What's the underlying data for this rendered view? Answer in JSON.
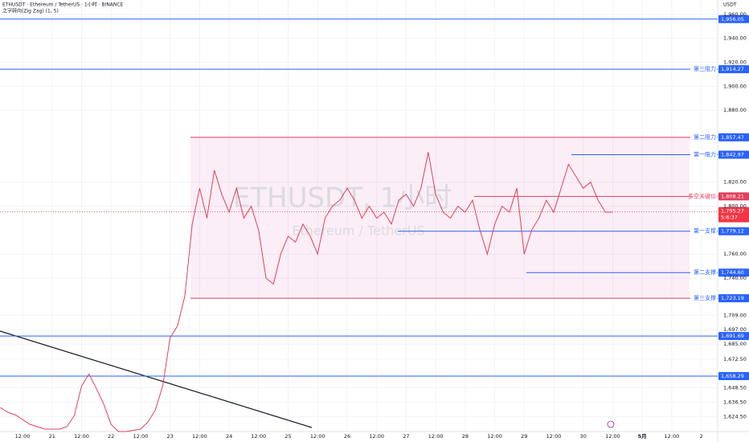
{
  "chart_data": {
    "type": "line",
    "title": "ETHUSDT · Ethereum / TetherUS · 1小时 · BINANCE",
    "subtitle": "之字转向(Zig Zag) (1, 5)",
    "currency": "USDT",
    "watermark": "ETHUSDT, 1小时",
    "watermark_sub": "Ethereum / TetherUS",
    "color": "#e0405a",
    "grid": true,
    "categories": [
      null,
      null,
      null,
      "12:00",
      null,
      null,
      null,
      "21",
      null,
      null,
      null,
      "12:00",
      null,
      null,
      null,
      "22",
      null,
      null,
      null,
      "12:00",
      null,
      null,
      null,
      "23",
      null,
      null,
      null,
      "12:00",
      null,
      null,
      null,
      "24",
      null,
      null,
      null,
      "12:00",
      null,
      null,
      null,
      "25",
      null,
      null,
      null,
      "12:00",
      null,
      null,
      null,
      "26",
      null,
      null,
      null,
      "12:00",
      null,
      null,
      null,
      "27",
      null,
      null,
      null,
      "12:00",
      null,
      null,
      null,
      "28",
      null,
      null,
      null,
      "12:00",
      null,
      null,
      null,
      "29",
      null,
      null,
      null,
      "12:00",
      null,
      null,
      null,
      "30",
      null,
      null,
      null,
      "12:00",
      null,
      null,
      null,
      "5月",
      null,
      null,
      null,
      "12:00",
      null,
      null,
      null,
      "2",
      null,
      null
    ],
    "values": [
      1632,
      1628,
      1626,
      1622,
      1618,
      1616,
      1614,
      1614,
      1614,
      1616,
      1625,
      1650,
      1660,
      1648,
      1635,
      1618,
      1612,
      1612,
      1613,
      1614,
      1620,
      1630,
      1650,
      1690,
      1700,
      1725,
      1785,
      1815,
      1790,
      1830,
      1810,
      1795,
      1815,
      1790,
      1800,
      1780,
      1740,
      1735,
      1760,
      1775,
      1770,
      1785,
      1775,
      1760,
      1790,
      1800,
      1805,
      1815,
      1805,
      1790,
      1800,
      1790,
      1795,
      1785,
      1805,
      1810,
      1800,
      1815,
      1845,
      1810,
      1795,
      1790,
      1800,
      1795,
      1805,
      1780,
      1760,
      1785,
      1800,
      1795,
      1815,
      1760,
      1780,
      1790,
      1805,
      1795,
      1815,
      1835,
      1825,
      1815,
      1820,
      1805,
      1795,
      1795,
      null,
      null,
      null,
      null,
      null,
      null,
      null,
      null,
      null,
      null,
      null,
      null,
      null,
      null
    ],
    "ylim": [
      1612,
      1972
    ],
    "yticks": [
      {
        "value": 1960,
        "label": "1,960.00"
      },
      {
        "value": 1940,
        "label": "1,940.00"
      },
      {
        "value": 1920,
        "label": "1,920.00"
      },
      {
        "value": 1900,
        "label": "1,900.00"
      },
      {
        "value": 1880,
        "label": "1,880.00"
      },
      {
        "value": 1820,
        "label": "1,820.00"
      },
      {
        "value": 1800,
        "label": "1,800.00"
      },
      {
        "value": 1760,
        "label": "1,760.00"
      },
      {
        "value": 1740,
        "label": "1,740.00"
      },
      {
        "value": 1709,
        "label": "1,709.00"
      },
      {
        "value": 1697,
        "label": "1,697.00"
      },
      {
        "value": 1685,
        "label": "1,685.00"
      },
      {
        "value": 1672.5,
        "label": "1,672.50"
      },
      {
        "value": 1648.5,
        "label": "1,648.50"
      },
      {
        "value": 1636.5,
        "label": "1,636.50"
      },
      {
        "value": 1624.5,
        "label": "1,624.50"
      }
    ],
    "levels": [
      {
        "value": 1956.05,
        "value_label": "1,956.05",
        "color": "#2962ff"
      },
      {
        "value": 1914.27,
        "value_label": "1,914.27",
        "label": "第三阻力",
        "color": "#2962ff"
      },
      {
        "value": 1857.47,
        "value_label": "1,857.47",
        "label": "第二阻力",
        "color": "#e0405a"
      },
      {
        "value": 1842.97,
        "value_label": "1,842.97",
        "label": "第一阻力",
        "color": "#2962ff"
      },
      {
        "value": 1808.21,
        "value_label": "1,808.21",
        "label": "多空关键位",
        "color": "#e0405a"
      },
      {
        "value": 1779.12,
        "value_label": "1,779.12",
        "label": "第一支撑",
        "color": "#2962ff"
      },
      {
        "value": 1744.6,
        "value_label": "1,744.60",
        "label": "第二支撑",
        "color": "#2962ff"
      },
      {
        "value": 1723.19,
        "value_label": "1,723.19",
        "label": "第三支撑",
        "color": "#e0405a"
      },
      {
        "value": 1691.69,
        "value_label": "1,691.69",
        "color": "#2962ff"
      },
      {
        "value": 1658.29,
        "value_label": "1,658.29",
        "color": "#2962ff"
      }
    ],
    "current": {
      "value": 1795.27,
      "value_label": "1,795.27",
      "countdown": "5:6:37",
      "color": "#f23645"
    }
  }
}
